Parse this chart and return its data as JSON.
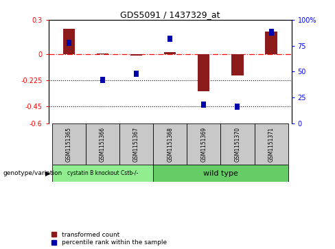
{
  "title": "GDS5091 / 1437329_at",
  "samples": [
    "GSM1151365",
    "GSM1151366",
    "GSM1151367",
    "GSM1151368",
    "GSM1151369",
    "GSM1151370",
    "GSM1151371"
  ],
  "red_values": [
    0.22,
    0.01,
    -0.01,
    0.02,
    -0.32,
    -0.18,
    0.2
  ],
  "blue_percentiles": [
    78,
    42,
    48,
    82,
    18,
    16,
    88
  ],
  "ylim_left": [
    -0.6,
    0.3
  ],
  "ylim_right": [
    0,
    100
  ],
  "yticks_left": [
    0.3,
    0.0,
    -0.225,
    -0.45,
    -0.6
  ],
  "yticks_right": [
    100,
    75,
    50,
    25,
    0
  ],
  "hlines": [
    -0.225,
    -0.45
  ],
  "dashed_hline": 0.0,
  "group1_label": "cystatin B knockout Cstb-/-",
  "group2_label": "wild type",
  "group1_indices": [
    0,
    1,
    2
  ],
  "group2_indices": [
    3,
    4,
    5,
    6
  ],
  "group1_color": "#90ee90",
  "group2_color": "#66cc66",
  "bar_color": "#8b1a1a",
  "dot_color": "#0000aa",
  "legend_label_red": "transformed count",
  "legend_label_blue": "percentile rank within the sample",
  "bg_color": "#c8c8c8",
  "bar_width": 0.35
}
